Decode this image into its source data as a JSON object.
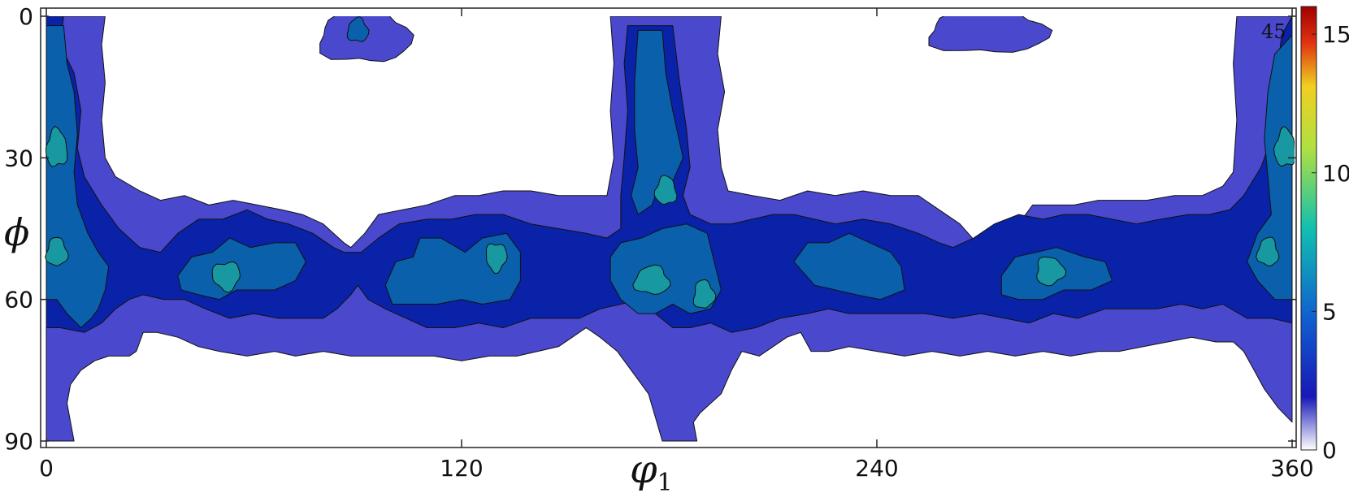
{
  "chart_data": {
    "type": "heatmap",
    "subtype": "filled-contour (ODF section)",
    "xlabel": "φ1",
    "xlabel_subscript": "1",
    "xlabel_symbol": "φ",
    "ylabel": "ϕ",
    "section_label": "45",
    "xlim": [
      0,
      360
    ],
    "ylim": [
      0,
      90
    ],
    "y_inverted": true,
    "x_ticks": [
      "0",
      "120",
      "240",
      "360"
    ],
    "y_ticks": [
      "0",
      "30",
      "60",
      "90"
    ],
    "colorbar": {
      "min": 0,
      "max": 16,
      "ticks": [
        "0",
        "5",
        "10",
        "15"
      ],
      "colormap": "jet"
    },
    "levels": [
      2,
      4,
      6,
      8
    ],
    "level_colors": [
      "#4a48cc",
      "#0a22a8",
      "#0a60aa",
      "#1898a0"
    ],
    "regions": [
      {
        "level": 1,
        "shape": "left edge column",
        "x_range": [
          0,
          18
        ],
        "y_range": [
          0,
          90
        ]
      },
      {
        "level": 1,
        "shape": "horizontal band",
        "x_range": [
          0,
          360
        ],
        "y_range": [
          38,
          72
        ]
      },
      {
        "level": 1,
        "shape": "top blob",
        "x_range": [
          74,
          108
        ],
        "y_range": [
          0,
          11
        ]
      },
      {
        "level": 1,
        "shape": "central column",
        "x_range": [
          162,
          194
        ],
        "y_range": [
          0,
          90
        ]
      },
      {
        "level": 1,
        "shape": "top blob",
        "x_range": [
          255,
          290
        ],
        "y_range": [
          0,
          8
        ]
      },
      {
        "level": 1,
        "shape": "right edge column",
        "x_range": [
          343,
          360
        ],
        "y_range": [
          0,
          86
        ]
      },
      {
        "level": 2,
        "shape": "band",
        "x_range": [
          0,
          360
        ],
        "y_range": [
          42,
          67
        ]
      },
      {
        "level": 3,
        "shape": "clusters",
        "peaks": [
          {
            "phi1": 52,
            "Phi": 54
          },
          {
            "phi1": 130,
            "Phi": 51
          },
          {
            "phi1": 178,
            "Phi": 38
          },
          {
            "phi1": 182,
            "Phi": 54
          },
          {
            "phi1": 190,
            "Phi": 59
          },
          {
            "phi1": 290,
            "Phi": 53
          },
          {
            "phi1": 358,
            "Phi": 28
          },
          {
            "phi1": 3,
            "Phi": 28
          }
        ]
      },
      {
        "level": 4,
        "shape": "peaks",
        "peaks": [
          {
            "phi1": 3,
            "Phi": 28
          },
          {
            "phi1": 358,
            "Phi": 28
          },
          {
            "phi1": 178,
            "Phi": 38
          },
          {
            "phi1": 176,
            "Phi": 56
          }
        ]
      }
    ]
  }
}
